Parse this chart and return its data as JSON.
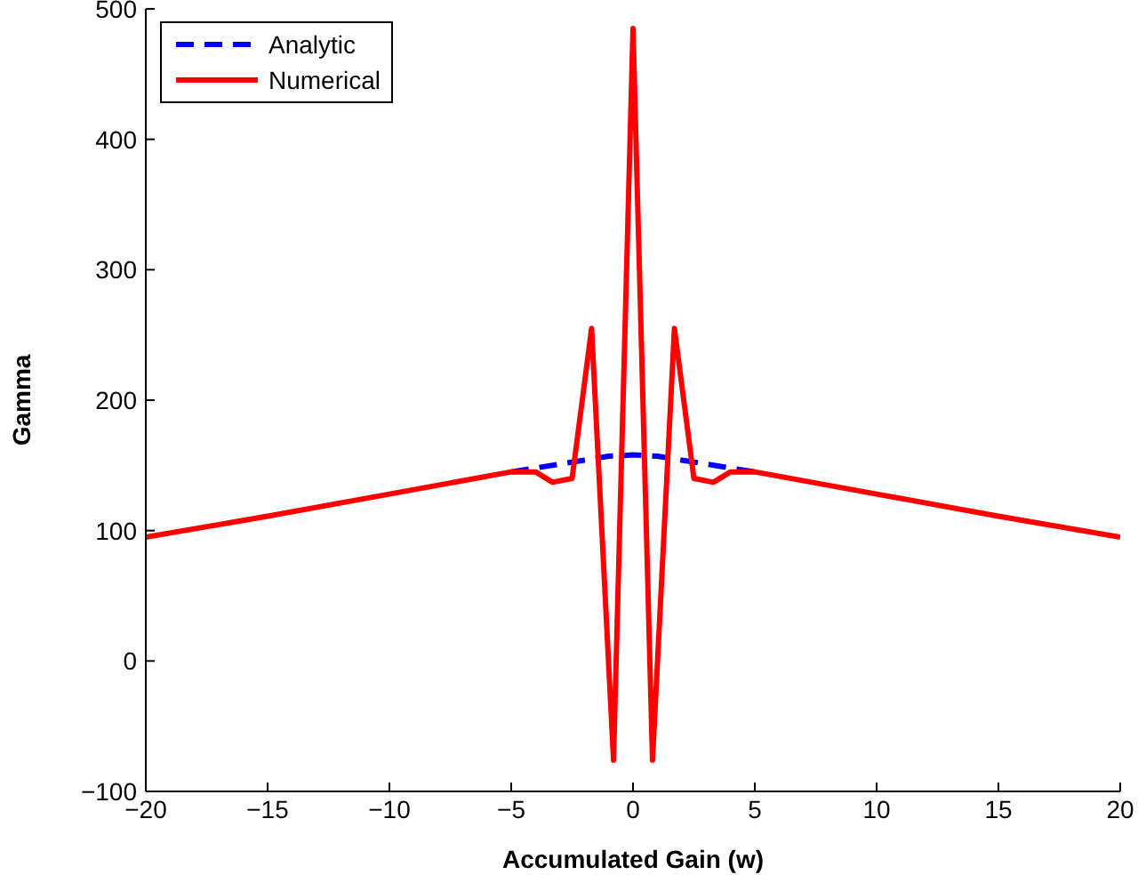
{
  "chart_data": {
    "type": "line",
    "xlabel": "Accumulated Gain (w)",
    "ylabel": "Gamma",
    "xlim": [
      -20,
      20
    ],
    "ylim": [
      -100,
      500
    ],
    "xticks": [
      -20,
      -15,
      -10,
      -5,
      0,
      5,
      10,
      15,
      20
    ],
    "yticks": [
      -100,
      0,
      100,
      200,
      300,
      400,
      500
    ],
    "legend": "top left",
    "marker": "none",
    "series": [
      {
        "name": "Analytic",
        "color": "#0000ff",
        "line_style": "dashed",
        "x": [
          -5,
          -3,
          -2,
          -1,
          0,
          1,
          2,
          3,
          5
        ],
        "values": [
          145,
          151,
          154,
          157,
          158,
          157,
          154,
          151,
          145
        ]
      },
      {
        "name": "Numerical",
        "color": "#ff0000",
        "line_style": "solid",
        "x": [
          -20,
          -15,
          -10,
          -5,
          -4,
          -3.3,
          -2.5,
          -1.7,
          -0.8,
          0,
          0.8,
          1.7,
          2.5,
          3.3,
          4,
          5,
          10,
          15,
          20
        ],
        "values": [
          95,
          111,
          128,
          145,
          145,
          137,
          140,
          255,
          -76,
          485,
          -76,
          255,
          140,
          137,
          145,
          145,
          128,
          111,
          95
        ]
      }
    ]
  }
}
